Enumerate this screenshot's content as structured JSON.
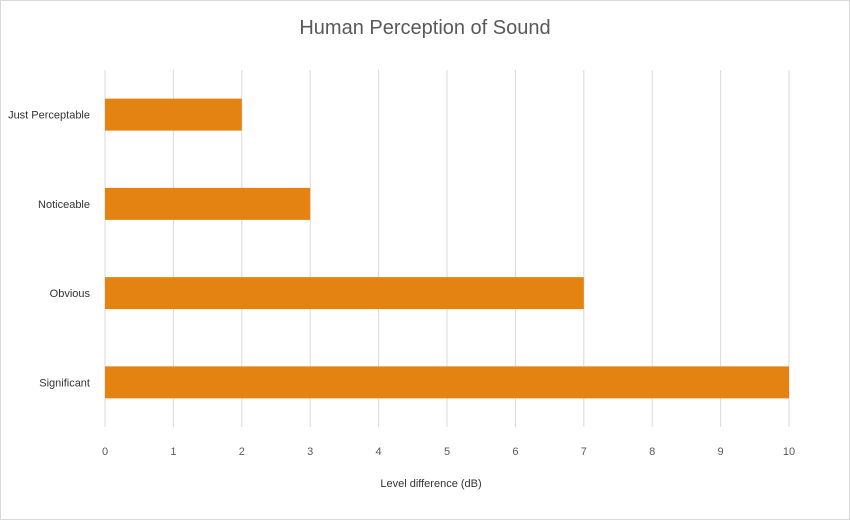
{
  "chart_data": {
    "type": "bar",
    "orientation": "horizontal",
    "title": "Human Perception of Sound",
    "xlabel": "Level difference (dB)",
    "ylabel": "",
    "categories": [
      "Just Perceptable",
      "Noticeable",
      "Obvious",
      "Significant"
    ],
    "values": [
      2,
      3,
      7,
      10
    ],
    "xlim": [
      0,
      10
    ],
    "xticks": [
      "0",
      "1",
      "2",
      "3",
      "4",
      "5",
      "6",
      "7",
      "8",
      "9",
      "10"
    ],
    "grid": true,
    "legend": "none",
    "bar_color": "#E48312",
    "grid_color": "#D9D9D9"
  }
}
